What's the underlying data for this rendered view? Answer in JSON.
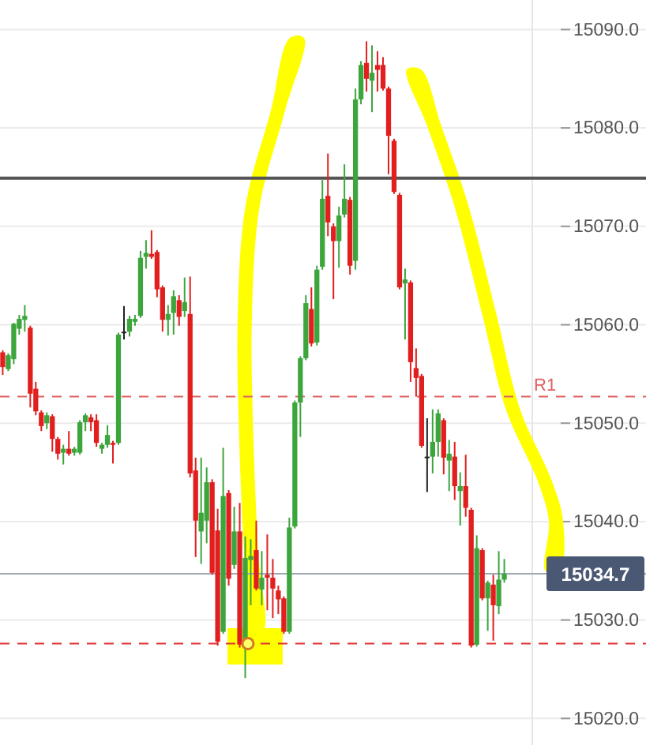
{
  "chart_data": {
    "type": "candlestick",
    "categories": [
      null,
      null,
      null,
      null,
      null,
      null,
      null,
      null,
      null,
      null,
      null,
      null,
      null,
      null,
      null,
      null,
      null,
      null,
      null,
      null,
      null,
      null,
      null,
      null,
      null,
      null,
      null,
      null,
      null,
      null,
      null,
      null,
      null,
      null,
      null,
      null,
      null,
      null,
      null,
      null,
      null,
      null,
      null,
      null,
      null,
      null,
      null,
      null,
      null,
      null,
      null,
      null,
      null,
      null,
      null,
      null,
      null,
      null,
      null,
      null,
      null,
      null,
      null,
      null,
      null,
      null,
      null,
      null,
      null,
      null,
      null,
      null,
      null,
      null,
      null,
      null,
      null,
      null,
      null,
      null,
      null,
      null,
      null,
      null,
      null,
      null,
      null,
      null,
      null,
      null,
      null,
      null
    ],
    "ohlc": [
      [
        15057.2,
        15057.4,
        15054.9,
        15055.7
      ],
      [
        15055.5,
        15057.1,
        15055.3,
        15056.9
      ],
      [
        15056.5,
        15060.2,
        15056.0,
        15060.1
      ],
      [
        15059.6,
        15061.0,
        15059.0,
        15060.6
      ],
      [
        15060.5,
        15062.0,
        15059.3,
        15060.9
      ],
      [
        15059.7,
        15059.9,
        15051.6,
        15053.0
      ],
      [
        15053.5,
        15054.2,
        15050.8,
        15051.2
      ],
      [
        15051.1,
        15051.3,
        15049.2,
        15049.7
      ],
      [
        15050.0,
        15051.1,
        15049.4,
        15050.8
      ],
      [
        15050.7,
        15050.9,
        15047.1,
        15048.4
      ],
      [
        15048.4,
        15048.6,
        15046.3,
        15046.9
      ],
      [
        15047.0,
        15047.8,
        15045.8,
        15047.4
      ],
      [
        15047.4,
        15049.2,
        15046.7,
        15046.9
      ],
      [
        15047.0,
        15047.6,
        15046.7,
        15047.4
      ],
      [
        15047.0,
        15050.3,
        15046.8,
        15050.1
      ],
      [
        15050.1,
        15051.0,
        15049.2,
        15050.8
      ],
      [
        15050.6,
        15050.9,
        15049.2,
        15050.1
      ],
      [
        15050.3,
        15050.9,
        15047.6,
        15048.0
      ],
      [
        15047.4,
        15048.0,
        15046.9,
        15047.8
      ],
      [
        15047.8,
        15049.8,
        15047.5,
        15048.8
      ],
      [
        15048.0,
        15048.2,
        15045.9,
        15047.8
      ],
      [
        15048.0,
        15059.2,
        15047.8,
        15059.0
      ],
      [
        15059.3,
        15061.9,
        15058.5,
        15059.3
      ],
      [
        15059.3,
        15060.9,
        15058.8,
        15060.6
      ],
      [
        15060.3,
        15061.0,
        15059.9,
        15060.6
      ],
      [
        15060.9,
        15067.5,
        15060.7,
        15066.8
      ],
      [
        15066.9,
        15068.6,
        15065.7,
        15067.3
      ],
      [
        15067.2,
        15069.6,
        15066.7,
        15066.9
      ],
      [
        15067.4,
        15067.6,
        15062.8,
        15063.6
      ],
      [
        15063.8,
        15064.0,
        15059.3,
        15060.5
      ],
      [
        15060.5,
        15062.0,
        15058.9,
        15061.1
      ],
      [
        15061.2,
        15063.5,
        15059.0,
        15062.9
      ],
      [
        15062.5,
        15063.0,
        15059.9,
        15060.8
      ],
      [
        15061.4,
        15064.8,
        15060.8,
        15062.3
      ],
      [
        15061.1,
        15064.9,
        15044.5,
        15044.9
      ],
      [
        15045.2,
        15046.5,
        15036.4,
        15040.1
      ],
      [
        15039.0,
        15046.5,
        15035.7,
        15040.9
      ],
      [
        15040.1,
        15045.5,
        15037.8,
        15044.0
      ],
      [
        15044.0,
        15044.3,
        15034.6,
        15034.8
      ],
      [
        15039.1,
        15041.3,
        15027.4,
        15027.8
      ],
      [
        15028.8,
        15047.5,
        15028.6,
        15042.6
      ],
      [
        15042.9,
        15043.2,
        15033.5,
        15034.2
      ],
      [
        15035.6,
        15041.5,
        15035.2,
        15039.0
      ],
      [
        15039.0,
        15041.9,
        15027.2,
        15027.5
      ],
      [
        15027.5,
        15038.5,
        15024.1,
        15036.3
      ],
      [
        15036.1,
        15038.2,
        15031.5,
        15036.5
      ],
      [
        15037.1,
        15040.1,
        15033.0,
        15033.2
      ],
      [
        15033.1,
        15037.0,
        15031.5,
        15034.3
      ],
      [
        15034.6,
        15038.7,
        15031.0,
        15034.3
      ],
      [
        15034.3,
        15036.2,
        15030.2,
        15033.2
      ],
      [
        15033.0,
        15033.5,
        15030.6,
        15032.1
      ],
      [
        15032.2,
        15032.4,
        15028.6,
        15028.8
      ],
      [
        15028.8,
        15040.4,
        15028.6,
        15039.4
      ],
      [
        15039.5,
        15052.3,
        15039.3,
        15052.1
      ],
      [
        15052.1,
        15056.8,
        15048.6,
        15056.6
      ],
      [
        15056.6,
        15063.0,
        15056.4,
        15062.2
      ],
      [
        15061.6,
        15063.8,
        15057.8,
        15058.1
      ],
      [
        15058.2,
        15066.0,
        15057.9,
        15065.6
      ],
      [
        15065.9,
        15074.7,
        15065.6,
        15072.8
      ],
      [
        15073.1,
        15077.4,
        15069.0,
        15070.4
      ],
      [
        15070.0,
        15070.3,
        15062.6,
        15068.5
      ],
      [
        15068.5,
        15072.0,
        15065.8,
        15071.1
      ],
      [
        15071.2,
        15076.3,
        15070.9,
        15072.8
      ],
      [
        15072.7,
        15073.0,
        15065.1,
        15066.0
      ],
      [
        15066.5,
        15084.0,
        15065.6,
        15082.9
      ],
      [
        15082.9,
        15086.8,
        15082.4,
        15086.4
      ],
      [
        15086.6,
        15088.8,
        15083.7,
        15085.0
      ],
      [
        15084.8,
        15088.4,
        15081.6,
        15085.6
      ],
      [
        15086.4,
        15087.8,
        15083.7,
        15085.9
      ],
      [
        15086.4,
        15087.2,
        15083.8,
        15084.0
      ],
      [
        15084.0,
        15084.2,
        15075.3,
        15079.2
      ],
      [
        15078.7,
        15078.9,
        15073.3,
        15073.5
      ],
      [
        15073.2,
        15073.4,
        15063.6,
        15063.8
      ],
      [
        15064.2,
        15065.7,
        15058.5,
        15064.6
      ],
      [
        15064.3,
        15064.5,
        15054.2,
        15056.2
      ],
      [
        15055.6,
        15057.6,
        15052.7,
        15054.6
      ],
      [
        15054.8,
        15055.0,
        15047.5,
        15047.7
      ],
      [
        15046.6,
        15050.5,
        15043.0,
        15046.6
      ],
      [
        15046.6,
        15051.4,
        15044.9,
        15048.1
      ],
      [
        15048.1,
        15051.4,
        15046.6,
        15051.0
      ],
      [
        15050.3,
        15050.5,
        15044.8,
        15046.5
      ],
      [
        15046.2,
        15048.3,
        15043.1,
        15046.9
      ],
      [
        15046.6,
        15048.1,
        15042.2,
        15043.6
      ],
      [
        15043.1,
        15045.0,
        15039.6,
        15043.6
      ],
      [
        15043.6,
        15046.8,
        15040.5,
        15041.4
      ],
      [
        15041.2,
        15041.4,
        15027.2,
        15027.4
      ],
      [
        15027.5,
        15038.6,
        15027.3,
        15037.3
      ],
      [
        15037.1,
        15037.3,
        15032.0,
        15032.2
      ],
      [
        15032.2,
        15034.0,
        15028.9,
        15033.8
      ],
      [
        15033.6,
        15034.6,
        15027.9,
        15031.5
      ],
      [
        15031.4,
        15037.0,
        15030.6,
        15034.1
      ],
      [
        15034.1,
        15036.2,
        15033.8,
        15034.7
      ]
    ],
    "colors": [
      "#e21f1f",
      "#3ca53c",
      "#3ca53c",
      "#3ca53c",
      "#3ca53c",
      "#e21f1f",
      "#e21f1f",
      "#e21f1f",
      "#3ca53c",
      "#e21f1f",
      "#e21f1f",
      "#3ca53c",
      "#e21f1f",
      "#3ca53c",
      "#3ca53c",
      "#3ca53c",
      "#e21f1f",
      "#e21f1f",
      "#3ca53c",
      "#3ca53c",
      "#e21f1f",
      "#3ca53c",
      "#222222",
      "#3ca53c",
      "#3ca53c",
      "#3ca53c",
      "#3ca53c",
      "#e21f1f",
      "#e21f1f",
      "#e21f1f",
      "#3ca53c",
      "#3ca53c",
      "#e21f1f",
      "#3ca53c",
      "#e21f1f",
      "#e21f1f",
      "#3ca53c",
      "#3ca53c",
      "#e21f1f",
      "#e21f1f",
      "#3ca53c",
      "#e21f1f",
      "#3ca53c",
      "#e21f1f",
      "#3ca53c",
      "#3ca53c",
      "#e21f1f",
      "#3ca53c",
      "#e21f1f",
      "#e21f1f",
      "#e21f1f",
      "#e21f1f",
      "#3ca53c",
      "#3ca53c",
      "#3ca53c",
      "#3ca53c",
      "#e21f1f",
      "#3ca53c",
      "#3ca53c",
      "#e21f1f",
      "#e21f1f",
      "#3ca53c",
      "#3ca53c",
      "#e21f1f",
      "#3ca53c",
      "#3ca53c",
      "#e21f1f",
      "#3ca53c",
      "#e21f1f",
      "#e21f1f",
      "#e21f1f",
      "#e21f1f",
      "#e21f1f",
      "#3ca53c",
      "#e21f1f",
      "#e21f1f",
      "#e21f1f",
      "#222222",
      "#3ca53c",
      "#3ca53c",
      "#e21f1f",
      "#3ca53c",
      "#e21f1f",
      "#3ca53c",
      "#e21f1f",
      "#e21f1f",
      "#3ca53c",
      "#e21f1f",
      "#3ca53c",
      "#e21f1f",
      "#3ca53c",
      "#3ca53c"
    ],
    "ylim": [
      15017.3,
      15093.0
    ],
    "yticks": [
      {
        "value": 15020,
        "label": "15020.0"
      },
      {
        "value": 15030,
        "label": "15030.0"
      },
      {
        "value": 15040,
        "label": "15040.0"
      },
      {
        "value": 15050,
        "label": "15050.0"
      },
      {
        "value": 15060,
        "label": "15060.0"
      },
      {
        "value": 15070,
        "label": "15070.0"
      },
      {
        "value": 15080,
        "label": "15080.0"
      },
      {
        "value": 15090,
        "label": "15090.0"
      }
    ],
    "grid": "y",
    "tick_labels": "y",
    "ref_lines": [
      {
        "axis": "y",
        "value": 15074.9,
        "color": "#555555",
        "line_style": "solid"
      },
      {
        "axis": "y",
        "value": 15052.7,
        "label": "R1",
        "color": "#e06060",
        "line_style": "dashed"
      },
      {
        "axis": "y",
        "value": 15027.6,
        "color": "#e03030",
        "line_style": "dashed"
      },
      {
        "axis": "y",
        "value": 15034.7,
        "label": "15034.7",
        "color": "#a0a8b4",
        "line_style": "solid"
      }
    ]
  }
}
